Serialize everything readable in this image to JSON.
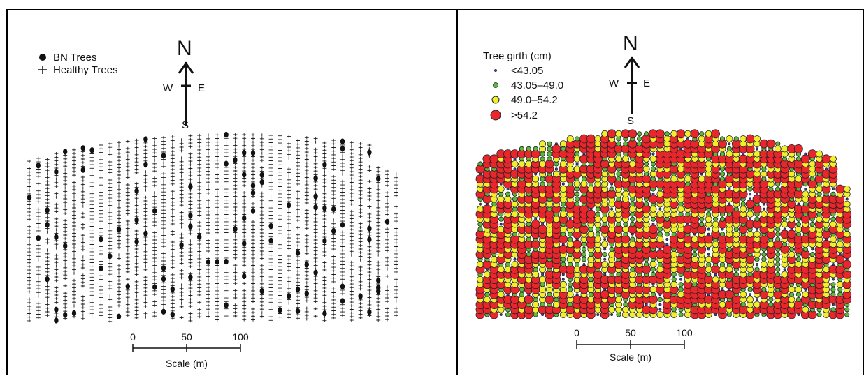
{
  "left_map": {
    "legend": [
      {
        "label": "BN Trees",
        "symbol": "dot"
      },
      {
        "label": "Healthy Trees",
        "symbol": "plus"
      }
    ],
    "compass": {
      "north": "N",
      "south": "S",
      "east": "E",
      "west": "W"
    },
    "scale": {
      "ticks": [
        "0",
        "50",
        "100"
      ],
      "title": "Scale (m)"
    }
  },
  "right_map": {
    "legend_title": "Tree girth (cm)",
    "legend": [
      {
        "label": "<43.05",
        "color": "#3545b0"
      },
      {
        "label": "43.05–49.0",
        "color": "#5db83b"
      },
      {
        "label": "49.0–54.2",
        "color": "#f2ee2c"
      },
      {
        "label": ">54.2",
        "color": "#e8262c"
      }
    ],
    "compass": {
      "north": "N",
      "south": "S",
      "east": "E",
      "west": "W"
    },
    "scale": {
      "ticks": [
        "0",
        "50",
        "100"
      ],
      "title": "Scale (m)"
    }
  }
}
